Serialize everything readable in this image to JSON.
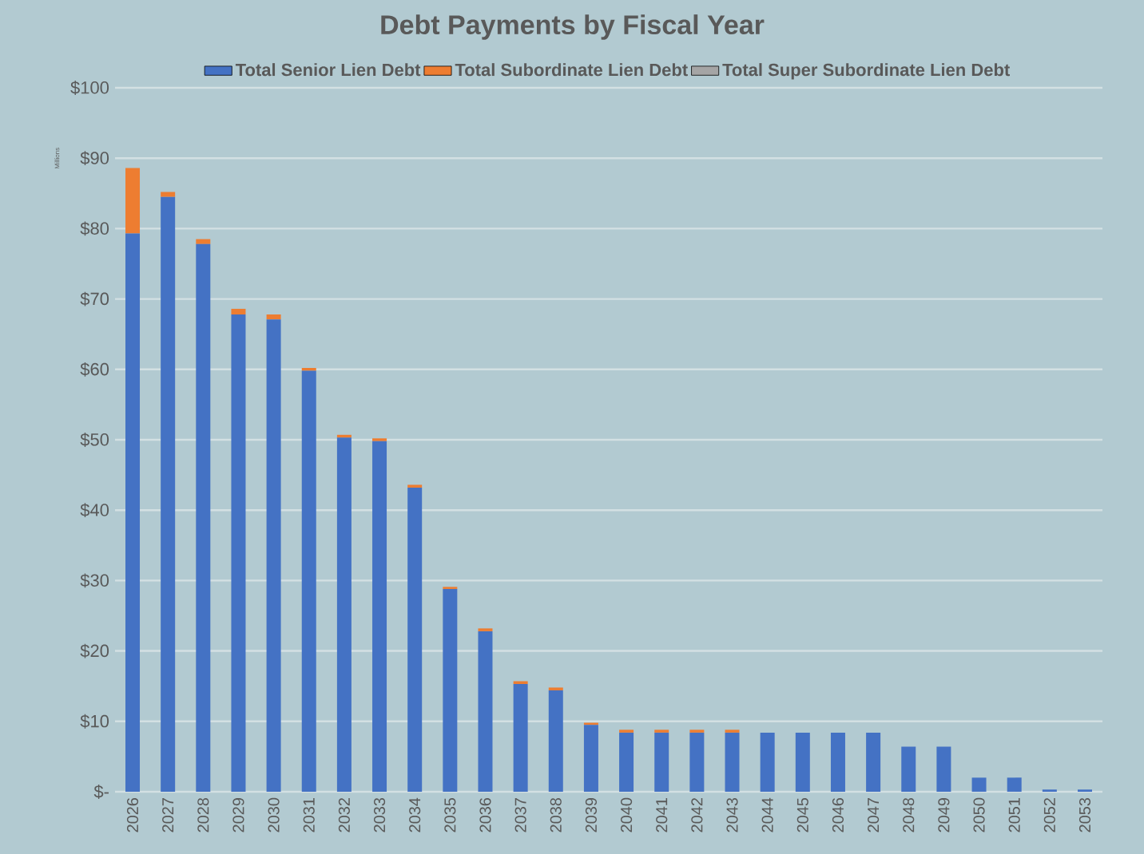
{
  "chart_data": {
    "type": "bar",
    "title": "Debt Payments by Fiscal Year",
    "ylabel": "Millions",
    "categories": [
      "2026",
      "2027",
      "2028",
      "2029",
      "2030",
      "2031",
      "2032",
      "2033",
      "2034",
      "2035",
      "2036",
      "2037",
      "2038",
      "2039",
      "2040",
      "2041",
      "2042",
      "2043",
      "2044",
      "2045",
      "2046",
      "2047",
      "2048",
      "2049",
      "2050",
      "2051",
      "2052",
      "2053"
    ],
    "stacked": true,
    "series": [
      {
        "name": "Total Senior Lien Debt",
        "color": "#4472c4",
        "values": [
          79.3,
          84.5,
          77.8,
          67.8,
          67.1,
          59.8,
          50.3,
          49.8,
          43.2,
          28.8,
          22.8,
          15.3,
          14.4,
          9.5,
          8.4,
          8.4,
          8.4,
          8.4,
          8.4,
          8.4,
          8.4,
          8.4,
          6.4,
          6.4,
          2.0,
          2.0,
          0.3,
          0.3
        ]
      },
      {
        "name": "Total Subordinate Lien Debt",
        "color": "#ed7d31",
        "values": [
          9.3,
          0.7,
          0.7,
          0.8,
          0.7,
          0.4,
          0.4,
          0.4,
          0.4,
          0.3,
          0.4,
          0.4,
          0.4,
          0.3,
          0.4,
          0.4,
          0.4,
          0.4,
          0,
          0,
          0,
          0,
          0,
          0,
          0,
          0,
          0,
          0
        ]
      },
      {
        "name": "Total Super Subordinate Lien Debt",
        "color": "#a5a5a5",
        "values": [
          0,
          0,
          0,
          0,
          0,
          0,
          0,
          0,
          0,
          0,
          0,
          0,
          0,
          0,
          0,
          0,
          0,
          0,
          0,
          0,
          0,
          0,
          0,
          0,
          0,
          0,
          0,
          0
        ]
      }
    ],
    "ylim": [
      0,
      100
    ],
    "yticks": [
      {
        "value": 0,
        "label": "$-"
      },
      {
        "value": 10,
        "label": "$10"
      },
      {
        "value": 20,
        "label": "$20"
      },
      {
        "value": 30,
        "label": "$30"
      },
      {
        "value": 40,
        "label": "$40"
      },
      {
        "value": 50,
        "label": "$50"
      },
      {
        "value": 60,
        "label": "$60"
      },
      {
        "value": 70,
        "label": "$70"
      },
      {
        "value": 80,
        "label": "$80"
      },
      {
        "value": 90,
        "label": "$90"
      },
      {
        "value": 100,
        "label": "$100"
      }
    ],
    "grid": "y",
    "legend": "top"
  }
}
